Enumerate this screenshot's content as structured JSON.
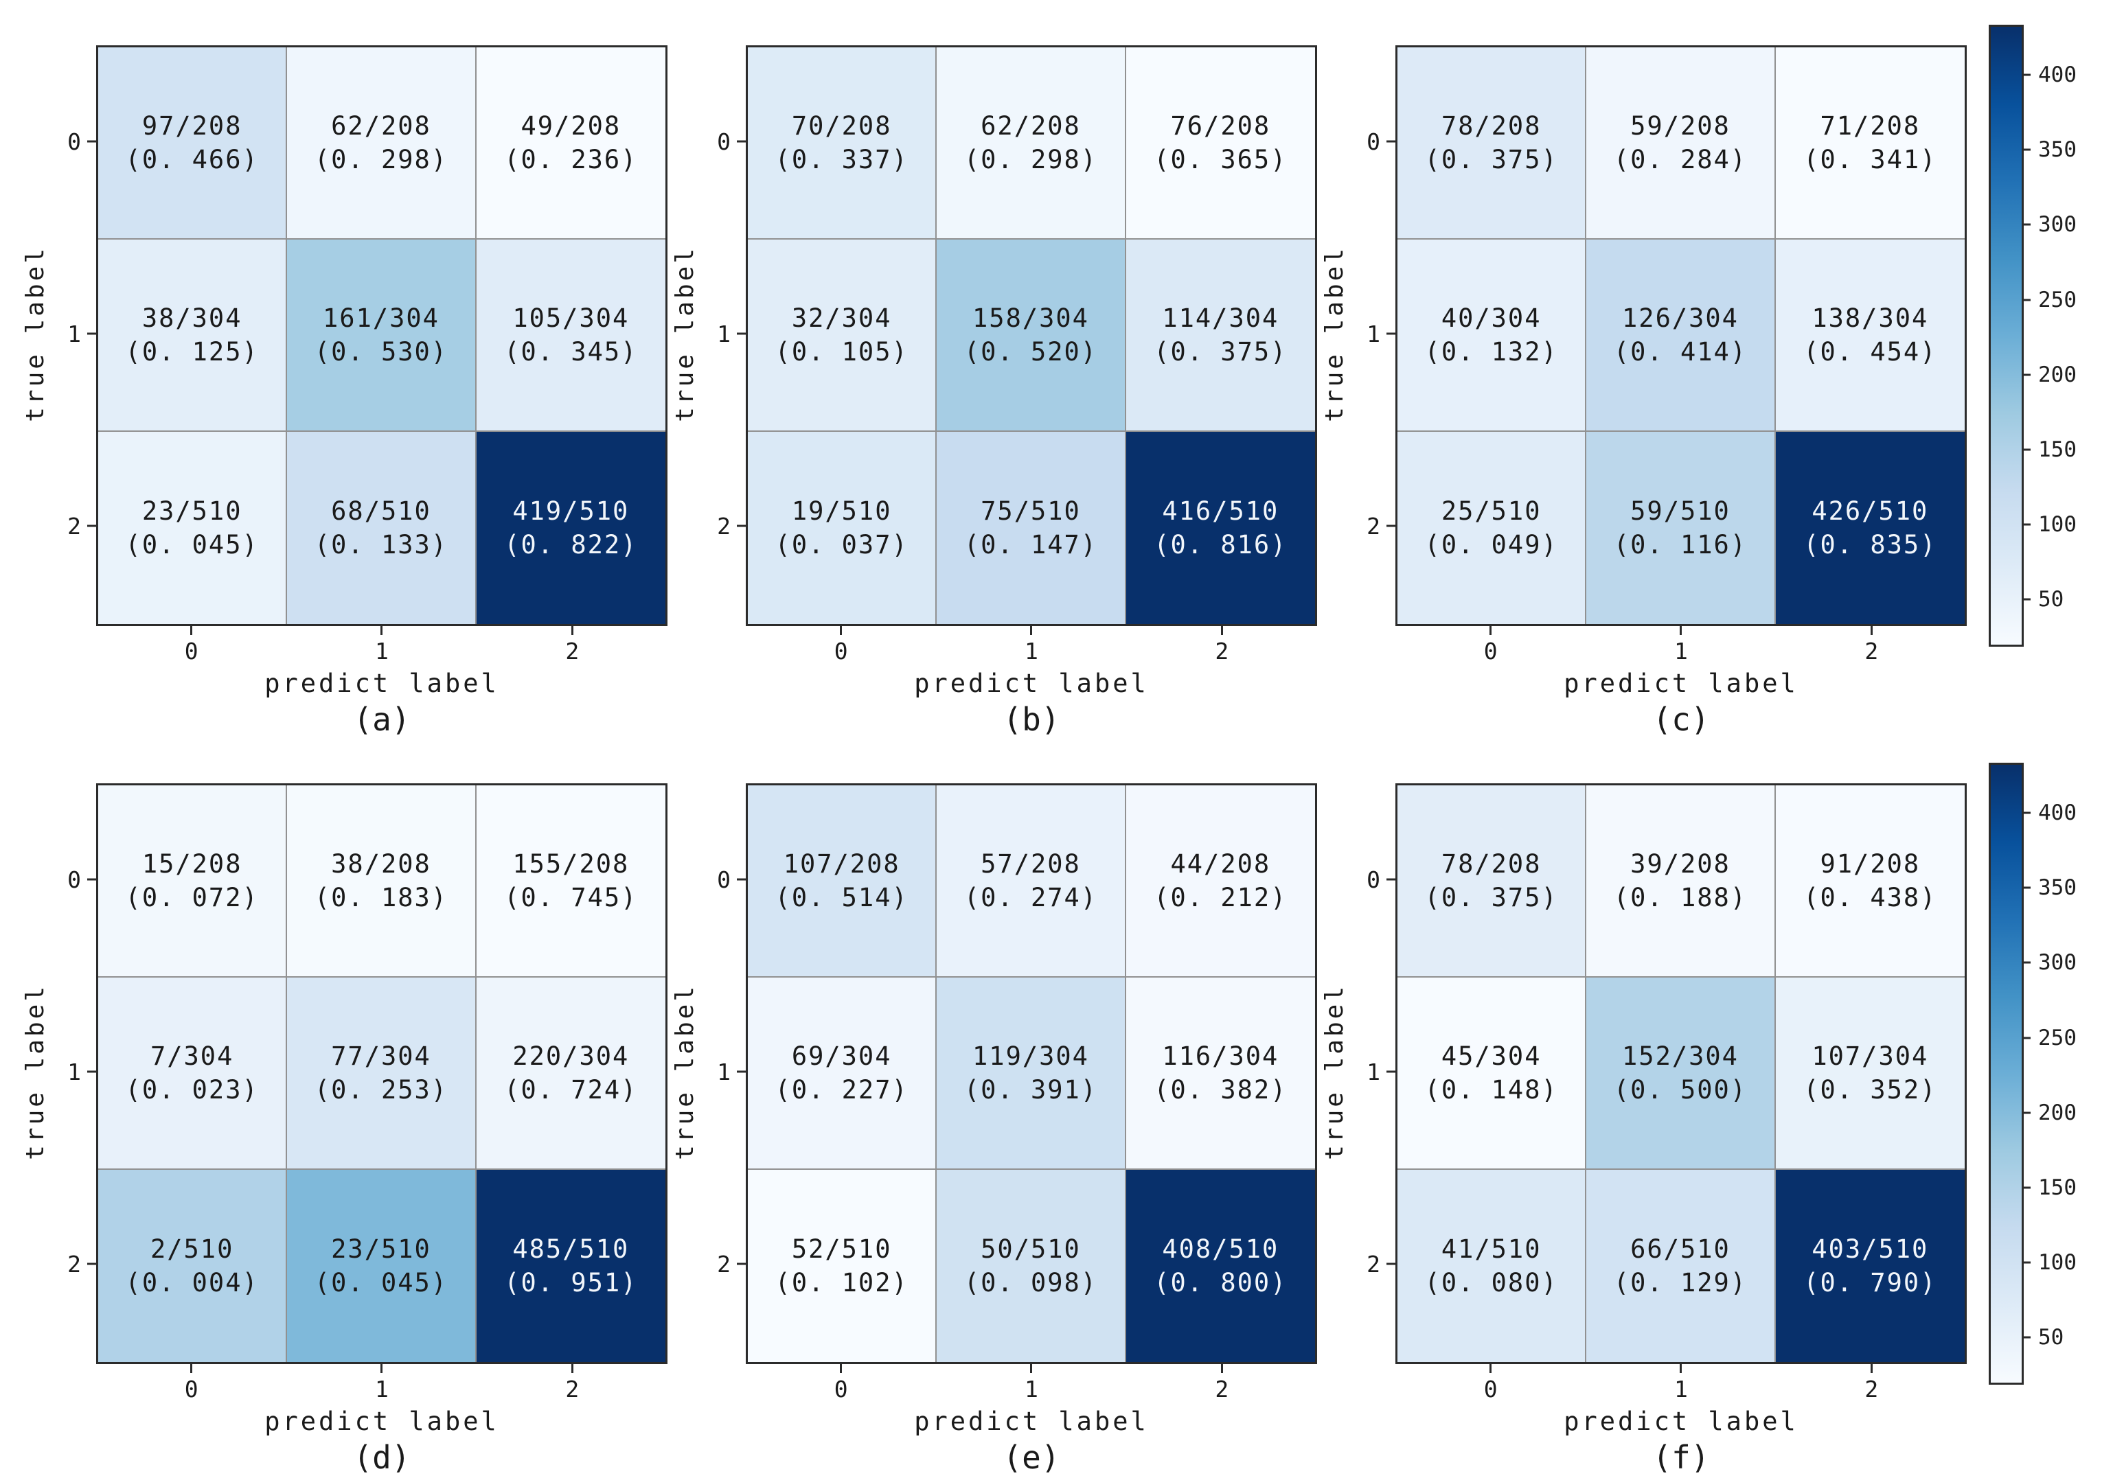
{
  "figure": {
    "background": "#ffffff",
    "axis_color": "#2b2b2b",
    "grid_color": "#919191",
    "text_color": "#1a1a1a",
    "dark_cell_text_color": "#f2f6fb"
  },
  "colorbar": {
    "tick_labels": [
      "50",
      "100",
      "150",
      "200",
      "250",
      "300",
      "350",
      "400"
    ],
    "tick_values": [
      50,
      100,
      150,
      200,
      250,
      300,
      350,
      400
    ],
    "vmin": 20,
    "vmax": 432,
    "colormap": "Blues",
    "colormap_stops": [
      "#f7fbff",
      "#deebf7",
      "#c6dbef",
      "#9ecae1",
      "#6baed6",
      "#4292c6",
      "#2171b5",
      "#08519c",
      "#08306b"
    ]
  },
  "chart_data": [
    {
      "type": "heatmap",
      "caption": "(a)",
      "xlabel": "predict label",
      "ylabel": "true label",
      "x_ticks": [
        "0",
        "1",
        "2"
      ],
      "y_ticks": [
        "0",
        "1",
        "2"
      ],
      "row_totals": [
        208,
        304,
        510
      ],
      "cells": [
        [
          {
            "count": 97,
            "total": 208,
            "frac": "0. 466"
          },
          {
            "count": 62,
            "total": 208,
            "frac": "0. 298"
          },
          {
            "count": 49,
            "total": 208,
            "frac": "0. 236"
          }
        ],
        [
          {
            "count": 38,
            "total": 304,
            "frac": "0. 125"
          },
          {
            "count": 161,
            "total": 304,
            "frac": "0. 530"
          },
          {
            "count": 105,
            "total": 304,
            "frac": "0. 345"
          }
        ],
        [
          {
            "count": 23,
            "total": 510,
            "frac": "0. 045"
          },
          {
            "count": 68,
            "total": 510,
            "frac": "0. 133"
          },
          {
            "count": 419,
            "total": 510,
            "frac": "0. 822"
          }
        ]
      ]
    },
    {
      "type": "heatmap",
      "caption": "(b)",
      "xlabel": "predict label",
      "ylabel": "true label",
      "x_ticks": [
        "0",
        "1",
        "2"
      ],
      "y_ticks": [
        "0",
        "1",
        "2"
      ],
      "row_totals": [
        208,
        304,
        510
      ],
      "cells": [
        [
          {
            "count": 70,
            "total": 208,
            "frac": "0. 337"
          },
          {
            "count": 62,
            "total": 208,
            "frac": "0. 298"
          },
          {
            "count": 76,
            "total": 208,
            "frac": "0. 365"
          }
        ],
        [
          {
            "count": 32,
            "total": 304,
            "frac": "0. 105"
          },
          {
            "count": 158,
            "total": 304,
            "frac": "0. 520"
          },
          {
            "count": 114,
            "total": 304,
            "frac": "0. 375"
          }
        ],
        [
          {
            "count": 19,
            "total": 510,
            "frac": "0. 037"
          },
          {
            "count": 75,
            "total": 510,
            "frac": "0. 147"
          },
          {
            "count": 416,
            "total": 510,
            "frac": "0. 816"
          }
        ]
      ]
    },
    {
      "type": "heatmap",
      "caption": "(c)",
      "xlabel": "predict label",
      "ylabel": "true label",
      "x_ticks": [
        "0",
        "1",
        "2"
      ],
      "y_ticks": [
        "0",
        "1",
        "2"
      ],
      "row_totals": [
        208,
        304,
        510
      ],
      "cells": [
        [
          {
            "count": 78,
            "total": 208,
            "frac": "0. 375"
          },
          {
            "count": 59,
            "total": 208,
            "frac": "0. 284"
          },
          {
            "count": 71,
            "total": 208,
            "frac": "0. 341"
          }
        ],
        [
          {
            "count": 40,
            "total": 304,
            "frac": "0. 132"
          },
          {
            "count": 126,
            "total": 304,
            "frac": "0. 414"
          },
          {
            "count": 138,
            "total": 304,
            "frac": "0. 454"
          }
        ],
        [
          {
            "count": 25,
            "total": 510,
            "frac": "0. 049"
          },
          {
            "count": 59,
            "total": 510,
            "frac": "0. 116"
          },
          {
            "count": 426,
            "total": 510,
            "frac": "0. 835"
          }
        ]
      ]
    },
    {
      "type": "heatmap",
      "caption": "(d)",
      "xlabel": "predict label",
      "ylabel": "true label",
      "x_ticks": [
        "0",
        "1",
        "2"
      ],
      "y_ticks": [
        "0",
        "1",
        "2"
      ],
      "row_totals": [
        208,
        304,
        510
      ],
      "cells": [
        [
          {
            "count": 15,
            "total": 208,
            "frac": "0. 072"
          },
          {
            "count": 38,
            "total": 208,
            "frac": "0. 183"
          },
          {
            "count": 155,
            "total": 208,
            "frac": "0. 745"
          }
        ],
        [
          {
            "count": 7,
            "total": 304,
            "frac": "0. 023"
          },
          {
            "count": 77,
            "total": 304,
            "frac": "0. 253"
          },
          {
            "count": 220,
            "total": 304,
            "frac": "0. 724"
          }
        ],
        [
          {
            "count": 2,
            "total": 510,
            "frac": "0. 004"
          },
          {
            "count": 23,
            "total": 510,
            "frac": "0. 045"
          },
          {
            "count": 485,
            "total": 510,
            "frac": "0. 951"
          }
        ]
      ]
    },
    {
      "type": "heatmap",
      "caption": "(e)",
      "xlabel": "predict label",
      "ylabel": "true label",
      "x_ticks": [
        "0",
        "1",
        "2"
      ],
      "y_ticks": [
        "0",
        "1",
        "2"
      ],
      "row_totals": [
        208,
        304,
        510
      ],
      "cells": [
        [
          {
            "count": 107,
            "total": 208,
            "frac": "0. 514"
          },
          {
            "count": 57,
            "total": 208,
            "frac": "0. 274"
          },
          {
            "count": 44,
            "total": 208,
            "frac": "0. 212"
          }
        ],
        [
          {
            "count": 69,
            "total": 304,
            "frac": "0. 227"
          },
          {
            "count": 119,
            "total": 304,
            "frac": "0. 391"
          },
          {
            "count": 116,
            "total": 304,
            "frac": "0. 382"
          }
        ],
        [
          {
            "count": 52,
            "total": 510,
            "frac": "0. 102"
          },
          {
            "count": 50,
            "total": 510,
            "frac": "0. 098"
          },
          {
            "count": 408,
            "total": 510,
            "frac": "0. 800"
          }
        ]
      ]
    },
    {
      "type": "heatmap",
      "caption": "(f)",
      "xlabel": "predict label",
      "ylabel": "true label",
      "x_ticks": [
        "0",
        "1",
        "2"
      ],
      "y_ticks": [
        "0",
        "1",
        "2"
      ],
      "row_totals": [
        208,
        304,
        510
      ],
      "cells": [
        [
          {
            "count": 78,
            "total": 208,
            "frac": "0. 375"
          },
          {
            "count": 39,
            "total": 208,
            "frac": "0. 188"
          },
          {
            "count": 91,
            "total": 208,
            "frac": "0. 438"
          }
        ],
        [
          {
            "count": 45,
            "total": 304,
            "frac": "0. 148"
          },
          {
            "count": 152,
            "total": 304,
            "frac": "0. 500"
          },
          {
            "count": 107,
            "total": 304,
            "frac": "0. 352"
          }
        ],
        [
          {
            "count": 41,
            "total": 510,
            "frac": "0. 080"
          },
          {
            "count": 66,
            "total": 510,
            "frac": "0. 129"
          },
          {
            "count": 403,
            "total": 510,
            "frac": "0. 790"
          }
        ]
      ]
    }
  ]
}
